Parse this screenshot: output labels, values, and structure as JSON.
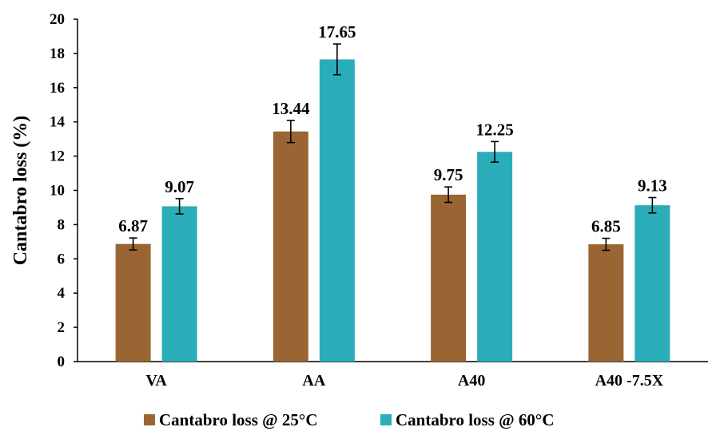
{
  "chart_data": {
    "type": "bar",
    "title": "",
    "xlabel": "",
    "ylabel": "Cantabro loss (%)",
    "ylim": [
      0,
      20
    ],
    "ytick_step": 2,
    "ytick_labels": [
      "0",
      "2",
      "4",
      "6",
      "8",
      "10",
      "12",
      "14",
      "16",
      "18",
      "20"
    ],
    "categories": [
      "VA",
      "AA",
      "A40",
      "A40 -7.5X"
    ],
    "series": [
      {
        "name": "Cantabro loss @ 25°C",
        "color": "#996633",
        "values": [
          6.87,
          13.44,
          9.75,
          6.85
        ],
        "value_labels": [
          "6.87",
          "13.44",
          "9.75",
          "6.85"
        ],
        "errors": [
          0.35,
          0.65,
          0.45,
          0.35
        ]
      },
      {
        "name": "Cantabro loss @ 60°C",
        "color": "#2AADB8",
        "values": [
          9.07,
          17.65,
          12.25,
          9.13
        ],
        "value_labels": [
          "9.07",
          "17.65",
          "12.25",
          "9.13"
        ],
        "errors": [
          0.45,
          0.9,
          0.6,
          0.45
        ]
      }
    ],
    "grid": false,
    "legend_position": "bottom"
  }
}
